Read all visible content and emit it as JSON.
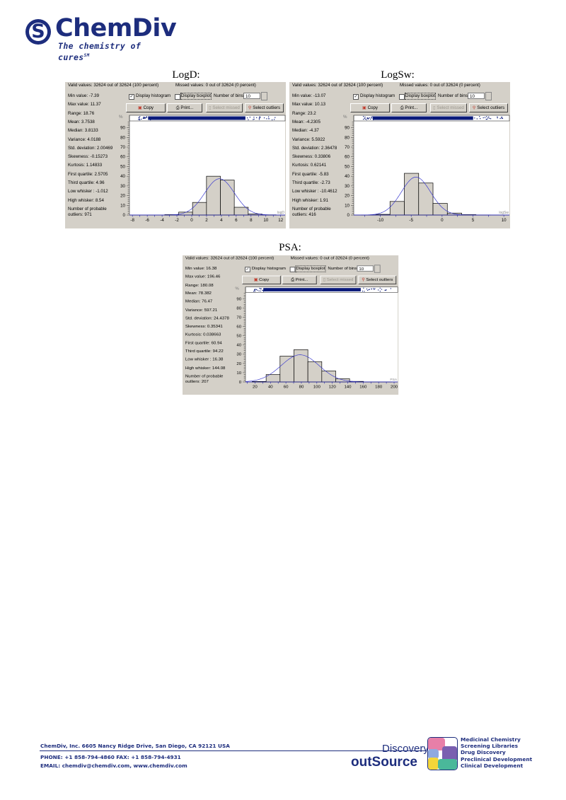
{
  "header": {
    "logo_name": "ChemDiv",
    "logo_tagline": "The chemistry of cures",
    "logo_tm": "SM"
  },
  "panels": [
    {
      "valid": "Valid values: 32624 out of 32624 (100 percent)",
      "missed": "Missed values: 0 out of 32624 (0 percent)",
      "stats": [
        "Min value: -7.39",
        "Max value: 11.37",
        "Range: 18.76",
        "Mean: 3.7538",
        "Median: 3.8133",
        "Variance: 4.0188",
        "Std. deviation: 2.00469",
        "Skewness: -0.15273",
        "Kurtosis: 1.14833",
        "First quartile: 2.5705",
        "Third quartile: 4.96",
        "Low whisker : -1.012",
        "High whisker: 8.54",
        "Number of probable",
        "outliers: 971"
      ],
      "display_histogram": "Display histogram",
      "histogram_checked": true,
      "display_boxplot": "Display boxplot",
      "boxplot_checked": false,
      "number_of_bins_label": "Number of bins",
      "number_of_bins": "10",
      "copy": "Copy",
      "print": "Print...",
      "select_missed": "Select missed",
      "select_outliers": "Select outliers",
      "y_unit": "%"
    },
    {
      "valid": "Valid values: 32624 out of 32624 (100 percent)",
      "missed": "Missed values: 0 out of 32624 (0 percent)",
      "stats": [
        "Min value: -13.07",
        "Max value: 10.13",
        "Range: 23.2",
        "Mean: -4.2305",
        "Median: -4.37",
        "Variance: 5.5922",
        "Std. deviation: 2.36478",
        "Skewness: 0.33806",
        "Kurtosis: 0.62141",
        "First quartile: -5.83",
        "Third quartile: -2.73",
        "Low whisker : -10.4612",
        "High whisker: 1.91",
        "Number of probable",
        "outliers: 416"
      ],
      "display_histogram": "Display histogram",
      "histogram_checked": true,
      "display_boxplot": "Display boxplot",
      "boxplot_checked": false,
      "number_of_bins_label": "Number of bins",
      "number_of_bins": "10",
      "copy": "Copy",
      "print": "Print...",
      "select_missed": "Select missed",
      "select_outliers": "Select outliers",
      "y_unit": "%"
    },
    {
      "valid": "Valid values: 32624 out of 32624 (100 percent)",
      "missed": "Missed values: 0 out of 32624 (0 percent)",
      "stats": [
        "Min value: 16.38",
        "Max value: 196.46",
        "Range: 180.08",
        "Mean: 78.382",
        "Median: 76.47",
        "Variance: 597.21",
        "Std. deviation: 24.4378",
        "Skewness: 0.35341",
        "Kurtosis: 0.038663",
        "First quartile: 60.94",
        "Third quartile: 94.22",
        "Low whisker : 16.38",
        "High whisker: 144.08",
        "Number of probable",
        "outliers: 207"
      ],
      "display_histogram": "Display histogram",
      "histogram_checked": true,
      "display_boxplot": "Display boxplot",
      "boxplot_checked": false,
      "number_of_bins_label": "Number of bins",
      "number_of_bins": "10",
      "copy": "Copy",
      "print": "Print...",
      "select_missed": "Select missed",
      "select_outliers": "Select outliers",
      "y_unit": "%"
    }
  ],
  "chart_data": [
    {
      "type": "bar",
      "title": "LogD:",
      "xlabel": "logD",
      "ylabel": "%",
      "bin_edges": [
        -7.39,
        -5.51,
        -3.64,
        -1.76,
        0.11,
        1.99,
        3.87,
        5.74,
        7.62,
        9.49,
        11.37
      ],
      "values": [
        0,
        0,
        0.4,
        3,
        13,
        40,
        36,
        8,
        1,
        0.2
      ],
      "fit": {
        "type": "normal",
        "mean": 3.7538,
        "sd": 2.00469
      },
      "xlim": [
        -8.4,
        12.6
      ],
      "ylim": [
        0,
        97
      ],
      "xticks": [
        -8,
        -6,
        -4,
        -2,
        0,
        2,
        4,
        6,
        8,
        10,
        12
      ],
      "yticks": [
        0,
        10,
        20,
        30,
        40,
        50,
        60,
        70,
        80,
        90
      ],
      "grid": false
    },
    {
      "type": "bar",
      "title": "LogSw:",
      "xlabel": "logSw",
      "ylabel": "%",
      "bin_edges": [
        -13.07,
        -10.75,
        -8.43,
        -6.11,
        -3.79,
        -1.47,
        0.85,
        3.17,
        5.49,
        7.81,
        10.13
      ],
      "values": [
        0.1,
        0.7,
        14,
        43,
        33,
        12,
        2,
        0.4,
        0.1,
        0
      ],
      "fit": {
        "type": "normal",
        "mean": -4.2305,
        "sd": 2.36478
      },
      "xlim": [
        -14.3,
        10.9
      ],
      "ylim": [
        0,
        97
      ],
      "xticks": [
        -10,
        -5,
        0,
        5,
        10
      ],
      "yticks": [
        0,
        10,
        20,
        30,
        40,
        50,
        60,
        70,
        80,
        90
      ],
      "grid": false
    },
    {
      "type": "bar",
      "title": "PSA:",
      "xlabel": "PSA",
      "ylabel": "%",
      "bin_edges": [
        16.38,
        34.39,
        52.39,
        70.4,
        88.41,
        106.42,
        124.42,
        142.43,
        160.44,
        178.45,
        196.46
      ],
      "values": [
        0.5,
        8,
        28,
        35,
        22,
        12,
        3.5,
        0.6,
        0.1,
        0.1
      ],
      "fit": {
        "type": "normal",
        "mean": 78.382,
        "sd": 24.4378
      },
      "xlim": [
        7.7,
        204.7
      ],
      "ylim": [
        0,
        97
      ],
      "xticks": [
        20,
        40,
        60,
        80,
        100,
        120,
        140,
        160,
        180,
        200
      ],
      "xtick_labels": [
        "20",
        "40",
        "60",
        "80",
        "100",
        "120",
        "140",
        "160",
        "180",
        "200"
      ],
      "yticks": [
        0,
        10,
        20,
        30,
        40,
        50,
        60,
        70,
        80,
        90
      ],
      "grid": false
    }
  ],
  "footer": {
    "address": "ChemDiv, Inc. 6605 Nancy Ridge Drive, San Diego, CA 92121 USA",
    "phone": "PHONE: +1 858-794-4860   FAX: +1 858-794-4931",
    "email": "EMAIL: chemdiv@chemdiv.com, www.chemdiv.com",
    "brand_top": "Discovery",
    "brand_tm": "TM",
    "brand_bottom": "outSource",
    "services": [
      "Medicinal Chemistry",
      "Screening Libraries",
      "Drug Discovery",
      "Preclinical Development",
      "Clinical Development"
    ],
    "brand_colors": [
      "#e77fa8",
      "#8fa9e0",
      "#7a5fb0",
      "#f4d63a",
      "#4ab89a"
    ]
  }
}
